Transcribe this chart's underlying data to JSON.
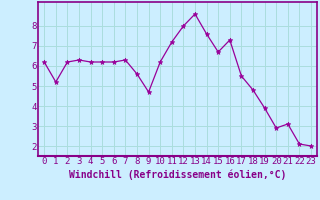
{
  "x": [
    0,
    1,
    2,
    3,
    4,
    5,
    6,
    7,
    8,
    9,
    10,
    11,
    12,
    13,
    14,
    15,
    16,
    17,
    18,
    19,
    20,
    21,
    22,
    23
  ],
  "y": [
    6.2,
    5.2,
    6.2,
    6.3,
    6.2,
    6.2,
    6.2,
    6.3,
    5.6,
    4.7,
    6.2,
    7.2,
    8.0,
    8.6,
    7.6,
    6.7,
    7.3,
    5.5,
    4.8,
    3.9,
    2.9,
    3.1,
    2.1,
    2.0
  ],
  "line_color": "#990099",
  "marker": "*",
  "marker_size": 3.5,
  "background_color": "#cceeff",
  "grid_color": "#aadddd",
  "xlabel": "Windchill (Refroidissement éolien,°C)",
  "ylim": [
    1.5,
    9.2
  ],
  "xlim": [
    -0.5,
    23.5
  ],
  "yticks": [
    2,
    3,
    4,
    5,
    6,
    7,
    8
  ],
  "xticks": [
    0,
    1,
    2,
    3,
    4,
    5,
    6,
    7,
    8,
    9,
    10,
    11,
    12,
    13,
    14,
    15,
    16,
    17,
    18,
    19,
    20,
    21,
    22,
    23
  ],
  "xlabel_fontsize": 7,
  "tick_fontsize": 6.5,
  "label_color": "#880088",
  "spine_color": "#880088",
  "bottom_spine_color": "#880088"
}
